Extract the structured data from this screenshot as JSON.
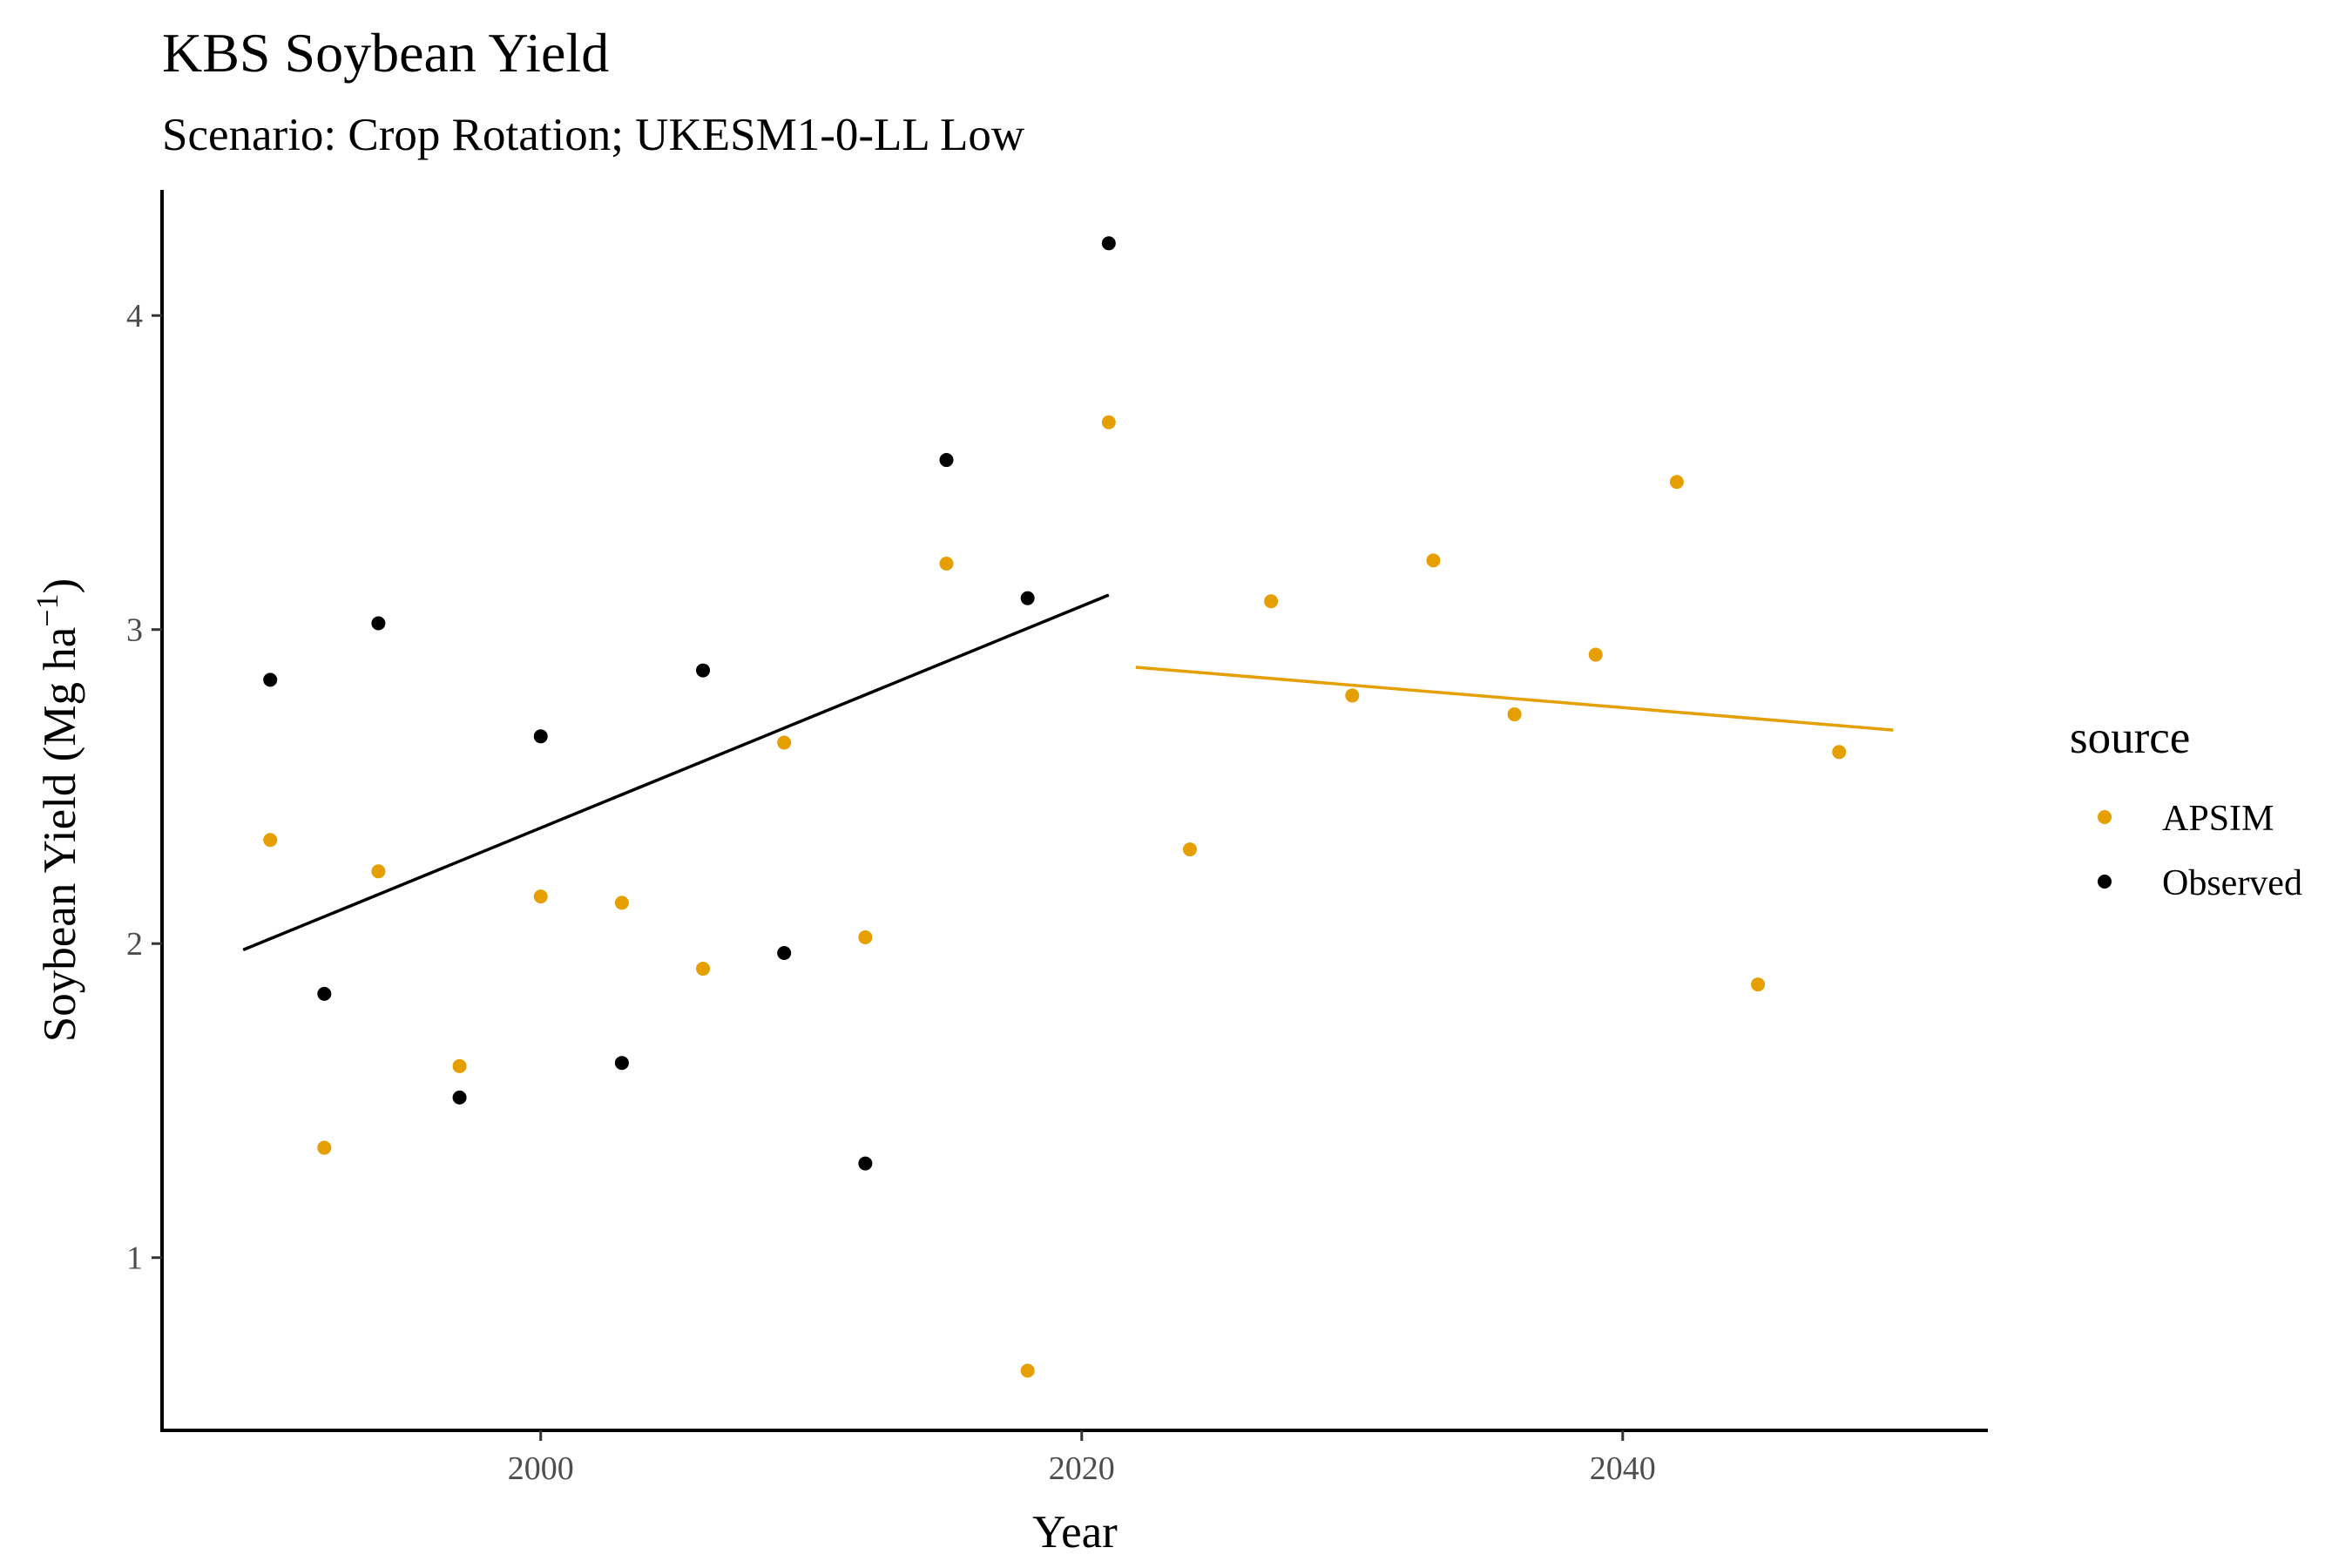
{
  "chart_data": {
    "type": "scatter",
    "title": "KBS Soybean Yield",
    "subtitle": "Scenario: Crop Rotation; UKESM1-0-LL Low",
    "xlabel": "Year",
    "ylabel_main": "Soybean Yield (Mg ha",
    "ylabel_sup": "−1",
    "ylabel_close": ")",
    "xlim": [
      1986,
      2053.5
    ],
    "ylim": [
      0.45,
      4.4
    ],
    "xticks": [
      2000,
      2020,
      2040
    ],
    "xtick_labels": [
      "2000",
      "2020",
      "2040"
    ],
    "yticks": [
      1,
      2,
      3,
      4
    ],
    "ytick_labels": [
      "1",
      "2",
      "3",
      "4"
    ],
    "grid": false,
    "legend": {
      "title": "source",
      "position": "right"
    },
    "series": [
      {
        "name": "APSIM",
        "color": "#E69F00",
        "points": [
          [
            1990,
            2.33
          ],
          [
            1992,
            1.35
          ],
          [
            1994,
            2.23
          ],
          [
            1997,
            1.61
          ],
          [
            2000,
            2.15
          ],
          [
            2003,
            2.13
          ],
          [
            2006,
            1.92
          ],
          [
            2009,
            2.64
          ],
          [
            2012,
            2.02
          ],
          [
            2015,
            3.21
          ],
          [
            2018,
            0.64
          ],
          [
            2021,
            3.66
          ],
          [
            2024,
            2.3
          ],
          [
            2027,
            3.09
          ],
          [
            2030,
            2.79
          ],
          [
            2033,
            3.22
          ],
          [
            2036,
            2.73
          ],
          [
            2039,
            2.92
          ],
          [
            2042,
            3.47
          ],
          [
            2045,
            1.87
          ],
          [
            2048,
            2.61
          ]
        ],
        "trend": [
          [
            2022,
            2.88
          ],
          [
            2050,
            2.68
          ]
        ]
      },
      {
        "name": "Observed",
        "color": "#000000",
        "points": [
          [
            1990,
            2.84
          ],
          [
            1992,
            1.84
          ],
          [
            1994,
            3.02
          ],
          [
            1997,
            1.51
          ],
          [
            2000,
            2.66
          ],
          [
            2003,
            1.62
          ],
          [
            2006,
            2.87
          ],
          [
            2009,
            1.97
          ],
          [
            2012,
            1.3
          ],
          [
            2015,
            3.54
          ],
          [
            2018,
            3.1
          ],
          [
            2021,
            4.23
          ]
        ],
        "trend": [
          [
            1989,
            1.98
          ],
          [
            2021,
            3.11
          ]
        ]
      }
    ]
  }
}
